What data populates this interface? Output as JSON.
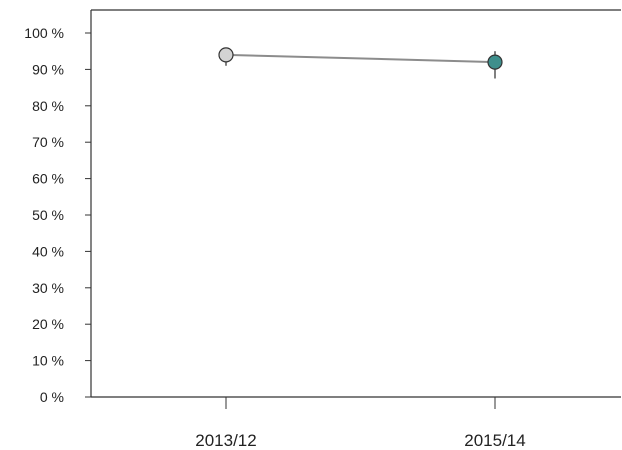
{
  "chart_data": {
    "type": "line",
    "categories": [
      "2013/12",
      "2015/14"
    ],
    "series": [
      {
        "values": [
          94,
          92
        ],
        "error_low": [
          91,
          87.5
        ],
        "error_high": [
          96,
          95
        ],
        "point_colors": [
          "#d3d3d3",
          "#3e8f8c"
        ]
      }
    ],
    "ylim": [
      0,
      100
    ],
    "y_ticks": [
      0,
      10,
      20,
      30,
      40,
      50,
      60,
      70,
      80,
      90,
      100
    ],
    "y_tick_labels": [
      "0 %",
      "10 %",
      "20 %",
      "30 %",
      "40 %",
      "50 %",
      "60 %",
      "70 %",
      "80 %",
      "90 %",
      "100 %"
    ],
    "title": "",
    "xlabel": "",
    "ylabel": "",
    "grid": false,
    "line_color": "#8c8c8c"
  }
}
